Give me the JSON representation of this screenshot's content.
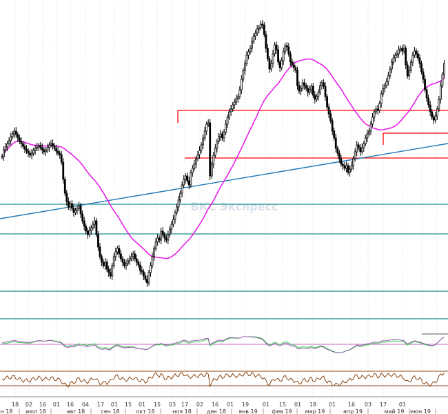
{
  "chart_data": {
    "type": "candlestick",
    "watermark": "БКС Экспресс",
    "x_axis": {
      "day_labels": [
        "18",
        "02",
        "16",
        "01",
        "16",
        "04",
        "17",
        "01",
        "15",
        "01",
        "15",
        "03",
        "17",
        "02",
        "16",
        "01",
        "19",
        "01",
        "15",
        "01",
        "18",
        "01",
        "16",
        "03",
        "17",
        "01"
      ],
      "month_labels": [
        "юн 18",
        "июл 18",
        "авг 18",
        "сен 18",
        "окт 18",
        "ноя 18",
        "дек 18",
        "янв 19",
        "фев 19",
        "мар 19",
        "апр 19",
        "май 19",
        "июн 19"
      ]
    },
    "price_series": {
      "name": "",
      "up_color": "#ffffff",
      "down_color": "#000000",
      "closes": [
        193,
        203,
        207,
        212,
        216,
        222,
        226,
        230,
        225,
        220,
        215,
        212,
        208,
        204,
        201,
        198,
        195,
        198,
        202,
        205,
        207,
        209,
        206,
        203,
        200,
        202,
        206,
        210,
        212,
        209,
        205,
        201,
        198,
        196,
        185,
        160,
        140,
        128,
        120,
        125,
        118,
        112,
        115,
        118,
        122,
        110,
        100,
        92,
        85,
        80,
        86,
        90,
        95,
        100,
        80,
        62,
        48,
        40,
        35,
        40,
        30,
        25,
        20,
        35,
        48,
        55,
        60,
        52,
        45,
        40,
        35,
        38,
        42,
        45,
        48,
        52,
        45,
        40,
        36,
        28,
        26,
        20,
        15,
        10,
        25,
        35,
        48,
        60,
        70,
        75,
        72,
        85,
        80,
        75,
        72,
        80,
        88,
        95,
        102,
        112,
        120,
        130,
        140,
        152,
        160,
        165,
        158,
        152,
        170,
        176,
        182,
        190,
        196,
        202,
        210,
        220,
        230,
        240,
        242,
        165,
        182,
        195,
        205,
        215,
        222,
        226,
        220,
        228,
        240,
        250,
        258,
        262,
        268,
        272,
        277,
        280,
        290,
        305,
        318,
        328,
        340,
        345,
        350,
        360,
        368,
        372,
        378,
        380,
        385,
        384,
        370,
        350,
        335,
        320,
        328,
        342,
        355,
        348,
        330,
        322,
        332,
        345,
        354,
        352,
        342,
        330,
        326,
        322,
        318,
        296,
        288,
        292,
        300,
        296,
        292,
        286,
        290,
        295,
        282,
        276,
        280,
        286,
        296,
        300,
        295,
        280,
        265,
        255,
        245,
        230,
        220,
        205,
        198,
        190,
        182,
        180,
        176,
        180,
        170,
        175,
        180,
        190,
        200,
        210,
        206,
        200,
        206,
        212,
        220,
        226,
        230,
        240,
        250,
        258,
        262,
        260,
        270,
        284,
        292,
        296,
        302,
        310,
        320,
        330,
        336,
        340,
        342,
        348,
        350,
        346,
        350,
        326,
        310,
        318,
        330,
        340,
        346,
        342,
        336,
        328,
        316,
        305,
        290,
        278,
        268,
        258,
        250,
        246,
        252,
        262,
        276,
        296,
        312,
        328
      ]
    },
    "ma_series": {
      "name": "",
      "color": "#e81fe8"
    },
    "horizontal_levels": [
      {
        "color": "#ff0000",
        "from": "ноя 18",
        "to": "end"
      },
      {
        "color": "#ff0000",
        "from": "ноя 18",
        "to": "end"
      },
      {
        "color": "#ff0000",
        "from": "май 19",
        "to": "end"
      },
      {
        "color": "#1a8c8c",
        "from": "start",
        "to": "end"
      },
      {
        "color": "#1a8c8c",
        "from": "start",
        "to": "end"
      },
      {
        "color": "#1a8c8c",
        "from": "start",
        "to": "end"
      },
      {
        "color": "#1a8c8c",
        "from": "start",
        "to": "end"
      }
    ],
    "trendline": {
      "color": "#1f77b4"
    },
    "oscillator_1": {
      "colors": [
        "#2ecc40",
        "#9b59b6"
      ]
    },
    "oscillator_2": {
      "color": "#8b4513"
    },
    "grid": "vertical-dotted"
  }
}
